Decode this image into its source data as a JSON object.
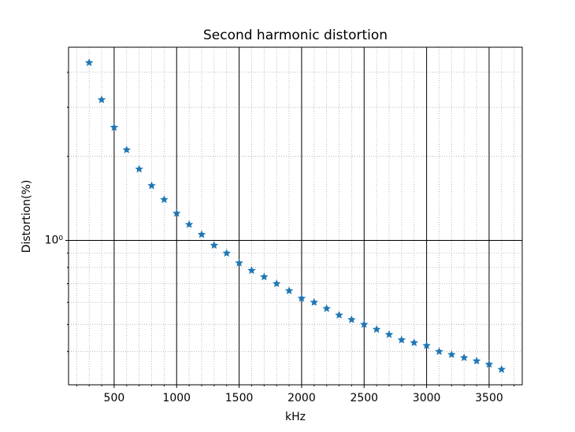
{
  "chart_data": {
    "type": "scatter",
    "title": "Second harmonic distortion",
    "x_label": "kHz",
    "y_label": "Distortion(%)",
    "x": [
      300,
      400,
      500,
      600,
      700,
      800,
      900,
      1000,
      1100,
      1200,
      1300,
      1400,
      1500,
      1600,
      1700,
      1800,
      1900,
      2000,
      2100,
      2200,
      2300,
      2400,
      2500,
      2600,
      2700,
      2800,
      2900,
      3000,
      3100,
      3200,
      3300,
      3400,
      3500,
      3600
    ],
    "values": [
      4.33,
      3.19,
      2.54,
      2.11,
      1.8,
      1.57,
      1.4,
      1.25,
      1.14,
      1.05,
      0.96,
      0.9,
      0.83,
      0.78,
      0.74,
      0.7,
      0.66,
      0.62,
      0.6,
      0.57,
      0.54,
      0.52,
      0.5,
      0.48,
      0.46,
      0.44,
      0.43,
      0.42,
      0.4,
      0.39,
      0.38,
      0.37,
      0.36,
      0.345
    ],
    "color": "#1f77b4",
    "marker": "star",
    "xlim": [
      135,
      3765
    ],
    "ylim": [
      0.304,
      4.92
    ],
    "y_scale": "log",
    "xticks": [
      500,
      1000,
      1500,
      2000,
      2500,
      3000,
      3500
    ],
    "xminorticks": [
      200,
      300,
      400,
      600,
      700,
      800,
      900,
      1100,
      1200,
      1300,
      1400,
      1600,
      1700,
      1800,
      1900,
      2100,
      2200,
      2300,
      2400,
      2600,
      2700,
      2800,
      2900,
      3100,
      3200,
      3300,
      3400,
      3600,
      3700
    ],
    "yticks": [
      {
        "value": 1,
        "label": "10⁰"
      }
    ],
    "yminorticks": [
      0.4,
      0.5,
      0.6,
      0.7,
      0.8,
      0.9,
      2,
      3,
      4
    ],
    "grid": true
  }
}
